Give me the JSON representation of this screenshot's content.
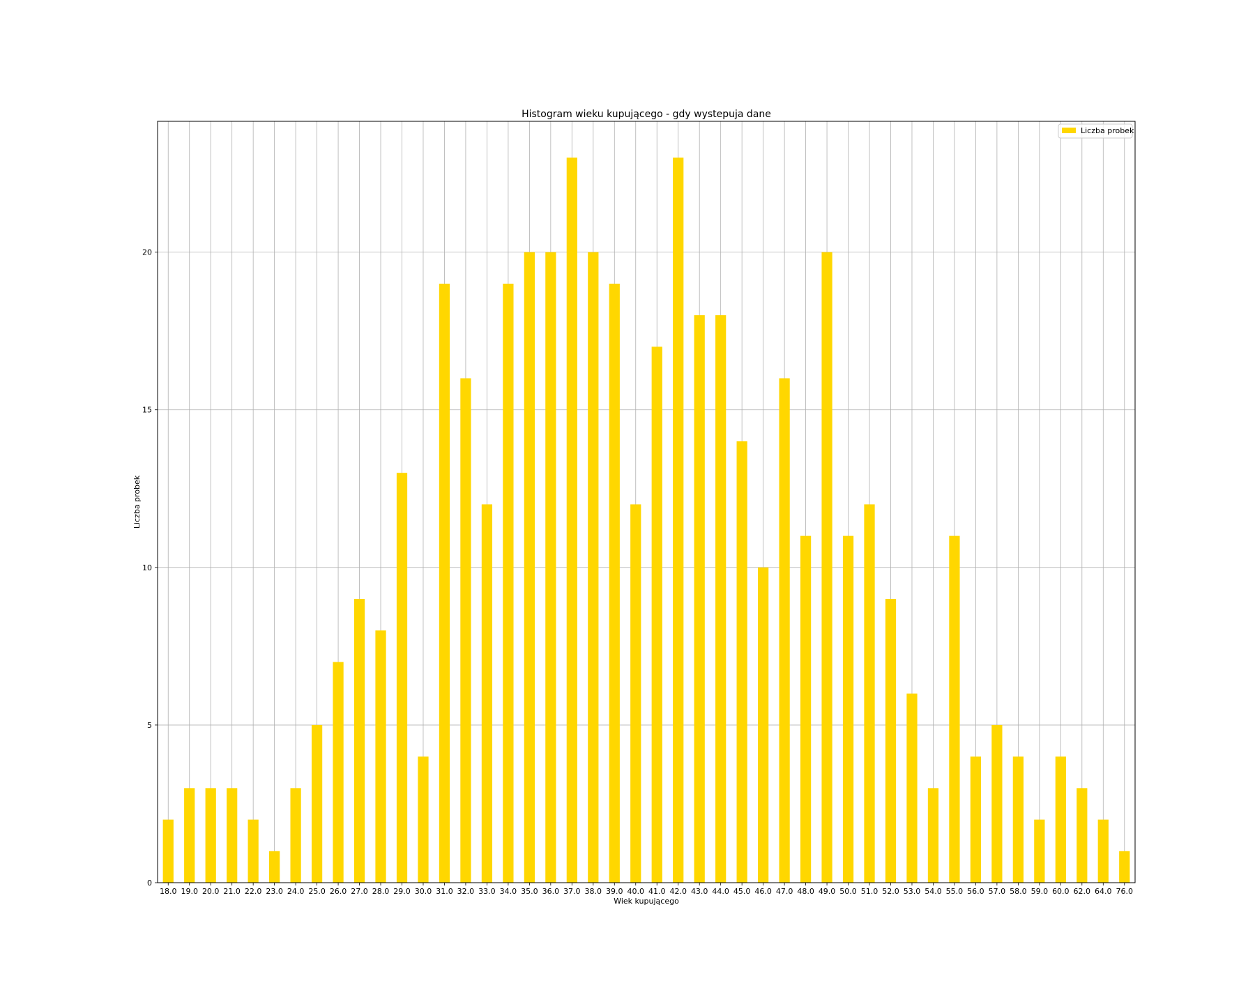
{
  "chart_data": {
    "type": "bar",
    "title": "Histogram wieku kupującego - gdy wystepuja dane",
    "xlabel": "Wiek kupującego",
    "ylabel": "Liczba probek",
    "categories": [
      "18.0",
      "19.0",
      "20.0",
      "21.0",
      "22.0",
      "23.0",
      "24.0",
      "25.0",
      "26.0",
      "27.0",
      "28.0",
      "29.0",
      "30.0",
      "31.0",
      "32.0",
      "33.0",
      "34.0",
      "35.0",
      "36.0",
      "37.0",
      "38.0",
      "39.0",
      "40.0",
      "41.0",
      "42.0",
      "43.0",
      "44.0",
      "45.0",
      "46.0",
      "47.0",
      "48.0",
      "49.0",
      "50.0",
      "51.0",
      "52.0",
      "53.0",
      "54.0",
      "55.0",
      "56.0",
      "57.0",
      "58.0",
      "59.0",
      "60.0",
      "62.0",
      "64.0",
      "76.0"
    ],
    "series": [
      {
        "name": "Liczba probek",
        "color": "#ffd700",
        "values": [
          2,
          3,
          3,
          3,
          2,
          1,
          3,
          5,
          7,
          9,
          8,
          13,
          4,
          19,
          16,
          12,
          19,
          20,
          20,
          23,
          20,
          19,
          12,
          17,
          23,
          18,
          18,
          14,
          10,
          16,
          11,
          20,
          11,
          12,
          9,
          6,
          3,
          11,
          4,
          5,
          4,
          2,
          4,
          3,
          2,
          1
        ]
      }
    ],
    "yticks": [
      0,
      5,
      10,
      15,
      20
    ],
    "ylim": [
      0,
      24.15
    ],
    "grid": true,
    "legend_position": "top-right"
  }
}
